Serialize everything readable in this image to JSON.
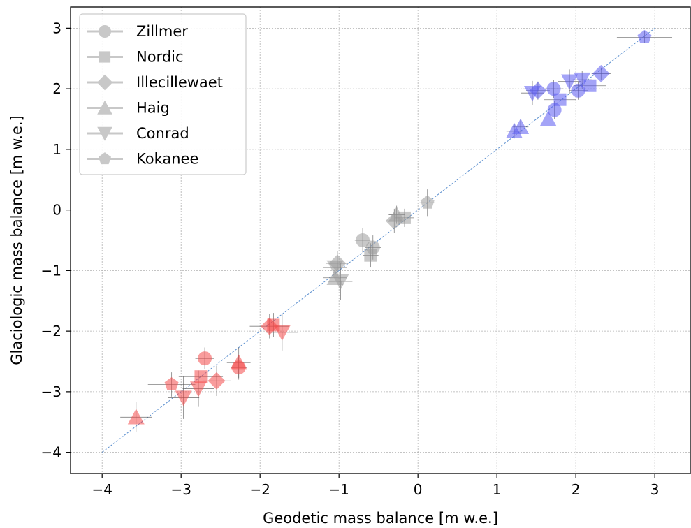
{
  "chart_data": {
    "type": "scatter",
    "xlabel": "Geodetic mass balance [m w.e.]",
    "ylabel": "Glaciologic mass balance [m w.e.]",
    "xlim": [
      -4.4,
      3.45
    ],
    "ylim": [
      -4.35,
      3.35
    ],
    "xticks": [
      -4,
      -3,
      -2,
      -1,
      0,
      1,
      2,
      3
    ],
    "yticks": [
      -4,
      -3,
      -2,
      -1,
      0,
      1,
      2,
      3
    ],
    "xtick_labels": [
      "−4",
      "−3",
      "−2",
      "−1",
      "0",
      "1",
      "2",
      "3"
    ],
    "ytick_labels": [
      "−4",
      "−3",
      "−2",
      "−1",
      "0",
      "1",
      "2",
      "3"
    ],
    "grid": true,
    "legend_position": "top-left",
    "one_to_one_line": {
      "from": -4,
      "to": 3,
      "color": "#5b8fcf"
    },
    "colors": {
      "negative": "#f44b4b",
      "neutral": "#9a9a9a",
      "positive": "#5a5af0",
      "errorbar": "#555555",
      "legend_marker": "#c8c8c8"
    },
    "series": [
      {
        "name": "Zillmer",
        "marker": "circle",
        "points": [
          {
            "x": -2.7,
            "y": -2.45,
            "xerr": 0.12,
            "yerr": 0.18,
            "c": "negative"
          },
          {
            "x": -2.27,
            "y": -2.6,
            "xerr": 0.1,
            "yerr": 0.2,
            "c": "negative"
          },
          {
            "x": -0.7,
            "y": -0.5,
            "xerr": 0.1,
            "yerr": 0.2,
            "c": "neutral"
          },
          {
            "x": -0.57,
            "y": -0.62,
            "xerr": 0.1,
            "yerr": 0.2,
            "c": "neutral"
          },
          {
            "x": 1.72,
            "y": 2.0,
            "xerr": 0.12,
            "yerr": 0.15,
            "c": "positive"
          },
          {
            "x": 1.73,
            "y": 1.65,
            "xerr": 0.1,
            "yerr": 0.15,
            "c": "positive"
          },
          {
            "x": 2.03,
            "y": 1.97,
            "xerr": 0.12,
            "yerr": 0.15,
            "c": "positive"
          }
        ]
      },
      {
        "name": "Nordic",
        "marker": "square",
        "points": [
          {
            "x": -2.75,
            "y": -2.75,
            "xerr": 0.28,
            "yerr": 0.3,
            "c": "negative"
          },
          {
            "x": -1.83,
            "y": -1.9,
            "xerr": 0.15,
            "yerr": 0.2,
            "c": "negative"
          },
          {
            "x": -0.6,
            "y": -0.75,
            "xerr": 0.1,
            "yerr": 0.2,
            "c": "neutral"
          },
          {
            "x": -0.17,
            "y": -0.13,
            "xerr": 0.12,
            "yerr": 0.15,
            "c": "neutral"
          },
          {
            "x": 1.8,
            "y": 1.82,
            "xerr": 0.2,
            "yerr": 0.15,
            "c": "positive"
          },
          {
            "x": 2.18,
            "y": 2.05,
            "xerr": 0.2,
            "yerr": 0.15,
            "c": "positive"
          }
        ]
      },
      {
        "name": "Illecillewaet",
        "marker": "diamond",
        "points": [
          {
            "x": -2.55,
            "y": -2.82,
            "xerr": 0.18,
            "yerr": 0.25,
            "c": "negative"
          },
          {
            "x": -1.88,
            "y": -1.92,
            "xerr": 0.25,
            "yerr": 0.2,
            "c": "negative"
          },
          {
            "x": -1.02,
            "y": -0.88,
            "xerr": 0.15,
            "yerr": 0.2,
            "c": "neutral"
          },
          {
            "x": -0.3,
            "y": -0.18,
            "xerr": 0.1,
            "yerr": 0.2,
            "c": "neutral"
          },
          {
            "x": 1.52,
            "y": 1.97,
            "xerr": 0.15,
            "yerr": 0.15,
            "c": "positive"
          },
          {
            "x": 2.32,
            "y": 2.25,
            "xerr": 0.12,
            "yerr": 0.1,
            "c": "positive"
          }
        ]
      },
      {
        "name": "Haig",
        "marker": "triangle-up",
        "points": [
          {
            "x": -3.57,
            "y": -3.42,
            "xerr": 0.2,
            "yerr": 0.25,
            "c": "negative"
          },
          {
            "x": -2.27,
            "y": -2.52,
            "xerr": 0.15,
            "yerr": 0.25,
            "c": "negative"
          },
          {
            "x": -1.05,
            "y": -1.12,
            "xerr": 0.15,
            "yerr": 0.2,
            "c": "neutral"
          },
          {
            "x": -0.27,
            "y": -0.08,
            "xerr": 0.1,
            "yerr": 0.15,
            "c": "neutral"
          },
          {
            "x": 1.22,
            "y": 1.3,
            "xerr": 0.1,
            "yerr": 0.12,
            "c": "positive"
          },
          {
            "x": 1.3,
            "y": 1.37,
            "xerr": 0.1,
            "yerr": 0.12,
            "c": "positive"
          },
          {
            "x": 1.65,
            "y": 1.5,
            "xerr": 0.12,
            "yerr": 0.15,
            "c": "positive"
          }
        ]
      },
      {
        "name": "Conrad",
        "marker": "triangle-down",
        "points": [
          {
            "x": -2.97,
            "y": -3.1,
            "xerr": 0.2,
            "yerr": 0.35,
            "c": "negative"
          },
          {
            "x": -2.78,
            "y": -2.95,
            "xerr": 0.2,
            "yerr": 0.3,
            "c": "negative"
          },
          {
            "x": -1.72,
            "y": -2.02,
            "xerr": 0.2,
            "yerr": 0.3,
            "c": "negative"
          },
          {
            "x": -1.05,
            "y": -0.95,
            "xerr": 0.15,
            "yerr": 0.3,
            "c": "neutral"
          },
          {
            "x": -0.98,
            "y": -1.18,
            "xerr": 0.15,
            "yerr": 0.3,
            "c": "neutral"
          },
          {
            "x": 1.45,
            "y": 1.93,
            "xerr": 0.15,
            "yerr": 0.2,
            "c": "positive"
          },
          {
            "x": 1.92,
            "y": 2.12,
            "xerr": 0.15,
            "yerr": 0.2,
            "c": "positive"
          },
          {
            "x": 2.08,
            "y": 2.15,
            "xerr": 0.12,
            "yerr": 0.15,
            "c": "positive"
          }
        ]
      },
      {
        "name": "Kokanee",
        "marker": "pentagon",
        "points": [
          {
            "x": -3.12,
            "y": -2.88,
            "xerr": 0.3,
            "yerr": 0.2,
            "c": "negative"
          },
          {
            "x": 0.12,
            "y": 0.12,
            "xerr": 0.1,
            "yerr": 0.22,
            "c": "neutral"
          },
          {
            "x": 2.87,
            "y": 2.85,
            "xerr": 0.35,
            "yerr": 0.1,
            "c": "positive"
          }
        ]
      }
    ]
  }
}
